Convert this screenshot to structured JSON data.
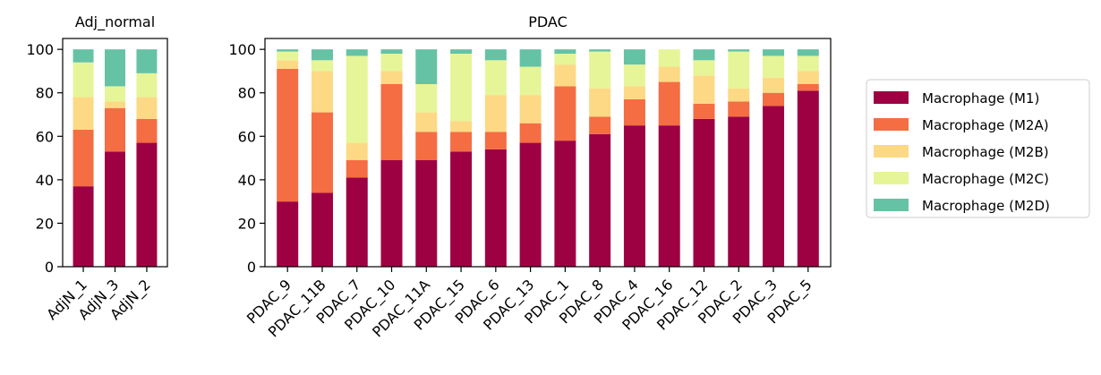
{
  "chart_data": [
    {
      "type": "bar",
      "stacked": true,
      "title": "Adj_normal",
      "xlabel": "",
      "ylabel": "",
      "ylim": [
        0,
        105
      ],
      "yticks": [
        0,
        20,
        40,
        60,
        80,
        100
      ],
      "grid": false,
      "categories": [
        "AdjN_1",
        "AdjN_3",
        "AdjN_2"
      ],
      "series": [
        {
          "name": "Macrophage (M1)",
          "values": [
            37,
            53,
            57
          ]
        },
        {
          "name": "Macrophage (M2A)",
          "values": [
            26,
            20,
            11
          ]
        },
        {
          "name": "Macrophage (M2B)",
          "values": [
            15,
            3,
            10
          ]
        },
        {
          "name": "Macrophage (M2C)",
          "values": [
            16,
            7,
            11
          ]
        },
        {
          "name": "Macrophage (M2D)",
          "values": [
            6,
            17,
            11
          ]
        }
      ]
    },
    {
      "type": "bar",
      "stacked": true,
      "title": "PDAC",
      "xlabel": "",
      "ylabel": "",
      "ylim": [
        0,
        105
      ],
      "yticks": [
        0,
        20,
        40,
        60,
        80,
        100
      ],
      "grid": false,
      "legend_position": "right",
      "categories": [
        "PDAC_9",
        "PDAC_11B",
        "PDAC_7",
        "PDAC_10",
        "PDAC_11A",
        "PDAC_15",
        "PDAC_6",
        "PDAC_13",
        "PDAC_1",
        "PDAC_8",
        "PDAC_4",
        "PDAC_16",
        "PDAC_12",
        "PDAC_2",
        "PDAC_3",
        "PDAC_5"
      ],
      "series": [
        {
          "name": "Macrophage (M1)",
          "values": [
            30,
            34,
            41,
            49,
            49,
            53,
            54,
            57,
            58,
            61,
            65,
            65,
            68,
            69,
            74,
            81
          ]
        },
        {
          "name": "Macrophage (M2A)",
          "values": [
            61,
            37,
            8,
            35,
            13,
            9,
            8,
            9,
            25,
            8,
            12,
            20,
            7,
            7,
            6,
            3
          ]
        },
        {
          "name": "Macrophage (M2B)",
          "values": [
            4,
            19,
            8,
            6,
            9,
            5,
            17,
            13,
            10,
            13,
            6,
            7,
            13,
            6,
            7,
            6
          ]
        },
        {
          "name": "Macrophage (M2C)",
          "values": [
            4,
            5,
            40,
            8,
            13,
            31,
            16,
            13,
            5,
            17,
            10,
            8,
            7,
            17,
            10,
            7
          ]
        },
        {
          "name": "Macrophage (M2D)",
          "values": [
            1,
            5,
            3,
            2,
            16,
            2,
            5,
            8,
            2,
            1,
            7,
            0,
            5,
            1,
            3,
            3
          ]
        }
      ]
    }
  ],
  "colors": [
    "#9e0142",
    "#f46d43",
    "#fdd985",
    "#e6f598",
    "#66c2a5"
  ],
  "legend": {
    "entries": [
      "Macrophage (M1)",
      "Macrophage (M2A)",
      "Macrophage (M2B)",
      "Macrophage (M2C)",
      "Macrophage (M2D)"
    ]
  }
}
